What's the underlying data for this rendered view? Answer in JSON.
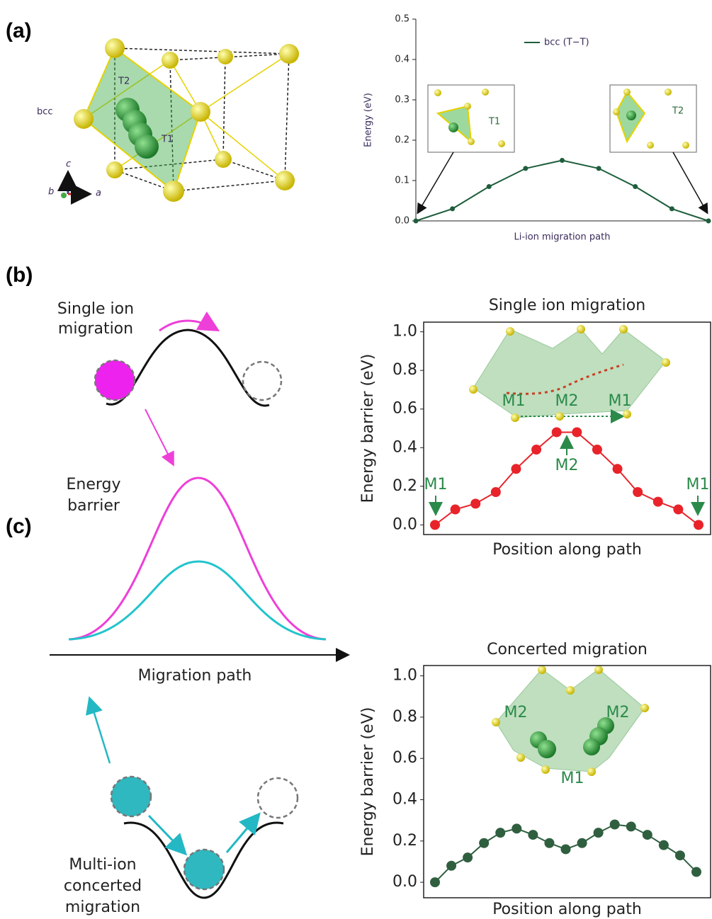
{
  "panels": [
    "(a)",
    "(b)",
    "(c)"
  ],
  "structure_labels": {
    "bcc": "bcc",
    "T2": "T2",
    "T1": "T1",
    "axes": [
      "c",
      "b",
      "a"
    ]
  },
  "schematic": {
    "single_ion": [
      "Single ion",
      "migration"
    ],
    "energy_barrier": [
      "Energy",
      "barrier"
    ],
    "migration_path": "Migration path",
    "multi_ion": [
      "Multi-ion",
      "concerted",
      "migration"
    ]
  },
  "chart_data": [
    {
      "type": "line",
      "y_label": "Energy (eV)",
      "x_label": "Li-ion migration path",
      "series": [
        {
          "name": "bcc (T−T)",
          "color": "#1e5e3c",
          "values": [
            0,
            0.03,
            0.085,
            0.13,
            0.15,
            0.13,
            0.085,
            0.03,
            0
          ]
        }
      ],
      "ylim": [
        0,
        0.5
      ],
      "yticks": [
        {
          "value": 0,
          "label": "0.0"
        },
        0.1,
        0.2,
        0.3,
        0.4,
        0.5
      ],
      "inset_labels": [
        "T1",
        "T2"
      ]
    },
    {
      "type": "line",
      "title": "Single ion migration",
      "y_label": "Energy barrier (eV)",
      "x_label": "Position along path",
      "series": [
        {
          "color": "#e8232a",
          "values": [
            0,
            0.08,
            0.11,
            0.17,
            0.29,
            0.39,
            0.48,
            0.48,
            0.39,
            0.29,
            0.17,
            0.12,
            0.08,
            0
          ]
        }
      ],
      "ylim": [
        -0.05,
        1.05
      ],
      "yticks": [
        {
          "value": 0,
          "label": "0.0"
        },
        0.2,
        0.4,
        0.6,
        0.8,
        {
          "value": 1,
          "label": "1.0"
        }
      ],
      "annotations": [
        "M1",
        "M2",
        "M1"
      ],
      "inset_labels": [
        "M1",
        "M2",
        "M1"
      ]
    },
    {
      "type": "line",
      "title": "Concerted migration",
      "y_label": "Energy barrier (eV)",
      "x_label": "Position along path",
      "series": [
        {
          "color": "#2f5f3f",
          "values": [
            0,
            0.08,
            0.12,
            0.19,
            0.24,
            0.26,
            0.23,
            0.19,
            0.16,
            0.19,
            0.24,
            0.28,
            0.27,
            0.23,
            0.18,
            0.13,
            0.05
          ]
        }
      ],
      "ylim": [
        -0.075,
        1.05
      ],
      "yticks": [
        {
          "value": 0,
          "label": "0.0"
        },
        0.2,
        0.4,
        0.6,
        0.8,
        {
          "value": 1,
          "label": "1.0"
        }
      ],
      "inset_labels": [
        "M2",
        "M2",
        "M1"
      ]
    }
  ]
}
